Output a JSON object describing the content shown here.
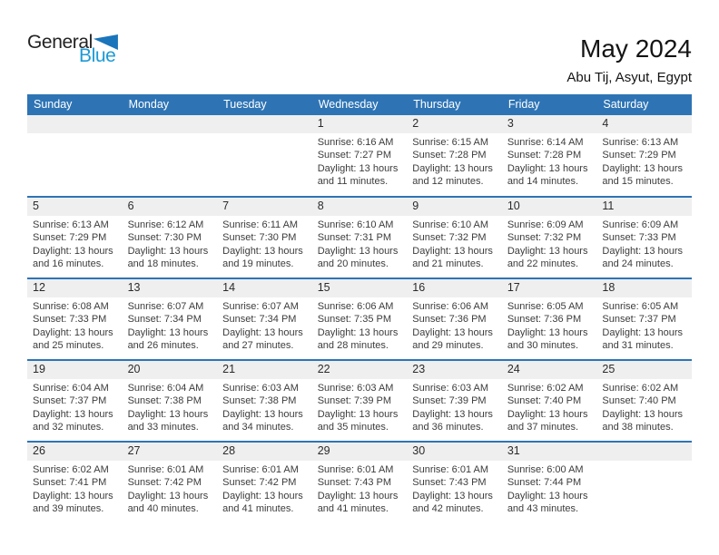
{
  "logo": {
    "general": "General",
    "blue": "Blue"
  },
  "header": {
    "title": "May 2024",
    "location": "Abu Tij, Asyut, Egypt"
  },
  "weekdays": [
    "Sunday",
    "Monday",
    "Tuesday",
    "Wednesday",
    "Thursday",
    "Friday",
    "Saturday"
  ],
  "colors": {
    "header_bg": "#2E74B5",
    "week_separator": "#2E74B5",
    "day_band_bg": "#EFEFEF",
    "logo_general": "#232323",
    "logo_blue": "#1C9AD6",
    "logo_triangle": "#1B75BB"
  },
  "calendar": {
    "weeks": [
      {
        "cells": [
          {
            "day": "",
            "sunrise": "",
            "sunset": "",
            "daylight1": "",
            "daylight2": ""
          },
          {
            "day": "",
            "sunrise": "",
            "sunset": "",
            "daylight1": "",
            "daylight2": ""
          },
          {
            "day": "",
            "sunrise": "",
            "sunset": "",
            "daylight1": "",
            "daylight2": ""
          },
          {
            "day": "1",
            "sunrise": "Sunrise: 6:16 AM",
            "sunset": "Sunset: 7:27 PM",
            "daylight1": "Daylight: 13 hours",
            "daylight2": "and 11 minutes."
          },
          {
            "day": "2",
            "sunrise": "Sunrise: 6:15 AM",
            "sunset": "Sunset: 7:28 PM",
            "daylight1": "Daylight: 13 hours",
            "daylight2": "and 12 minutes."
          },
          {
            "day": "3",
            "sunrise": "Sunrise: 6:14 AM",
            "sunset": "Sunset: 7:28 PM",
            "daylight1": "Daylight: 13 hours",
            "daylight2": "and 14 minutes."
          },
          {
            "day": "4",
            "sunrise": "Sunrise: 6:13 AM",
            "sunset": "Sunset: 7:29 PM",
            "daylight1": "Daylight: 13 hours",
            "daylight2": "and 15 minutes."
          }
        ]
      },
      {
        "cells": [
          {
            "day": "5",
            "sunrise": "Sunrise: 6:13 AM",
            "sunset": "Sunset: 7:29 PM",
            "daylight1": "Daylight: 13 hours",
            "daylight2": "and 16 minutes."
          },
          {
            "day": "6",
            "sunrise": "Sunrise: 6:12 AM",
            "sunset": "Sunset: 7:30 PM",
            "daylight1": "Daylight: 13 hours",
            "daylight2": "and 18 minutes."
          },
          {
            "day": "7",
            "sunrise": "Sunrise: 6:11 AM",
            "sunset": "Sunset: 7:30 PM",
            "daylight1": "Daylight: 13 hours",
            "daylight2": "and 19 minutes."
          },
          {
            "day": "8",
            "sunrise": "Sunrise: 6:10 AM",
            "sunset": "Sunset: 7:31 PM",
            "daylight1": "Daylight: 13 hours",
            "daylight2": "and 20 minutes."
          },
          {
            "day": "9",
            "sunrise": "Sunrise: 6:10 AM",
            "sunset": "Sunset: 7:32 PM",
            "daylight1": "Daylight: 13 hours",
            "daylight2": "and 21 minutes."
          },
          {
            "day": "10",
            "sunrise": "Sunrise: 6:09 AM",
            "sunset": "Sunset: 7:32 PM",
            "daylight1": "Daylight: 13 hours",
            "daylight2": "and 22 minutes."
          },
          {
            "day": "11",
            "sunrise": "Sunrise: 6:09 AM",
            "sunset": "Sunset: 7:33 PM",
            "daylight1": "Daylight: 13 hours",
            "daylight2": "and 24 minutes."
          }
        ]
      },
      {
        "cells": [
          {
            "day": "12",
            "sunrise": "Sunrise: 6:08 AM",
            "sunset": "Sunset: 7:33 PM",
            "daylight1": "Daylight: 13 hours",
            "daylight2": "and 25 minutes."
          },
          {
            "day": "13",
            "sunrise": "Sunrise: 6:07 AM",
            "sunset": "Sunset: 7:34 PM",
            "daylight1": "Daylight: 13 hours",
            "daylight2": "and 26 minutes."
          },
          {
            "day": "14",
            "sunrise": "Sunrise: 6:07 AM",
            "sunset": "Sunset: 7:34 PM",
            "daylight1": "Daylight: 13 hours",
            "daylight2": "and 27 minutes."
          },
          {
            "day": "15",
            "sunrise": "Sunrise: 6:06 AM",
            "sunset": "Sunset: 7:35 PM",
            "daylight1": "Daylight: 13 hours",
            "daylight2": "and 28 minutes."
          },
          {
            "day": "16",
            "sunrise": "Sunrise: 6:06 AM",
            "sunset": "Sunset: 7:36 PM",
            "daylight1": "Daylight: 13 hours",
            "daylight2": "and 29 minutes."
          },
          {
            "day": "17",
            "sunrise": "Sunrise: 6:05 AM",
            "sunset": "Sunset: 7:36 PM",
            "daylight1": "Daylight: 13 hours",
            "daylight2": "and 30 minutes."
          },
          {
            "day": "18",
            "sunrise": "Sunrise: 6:05 AM",
            "sunset": "Sunset: 7:37 PM",
            "daylight1": "Daylight: 13 hours",
            "daylight2": "and 31 minutes."
          }
        ]
      },
      {
        "cells": [
          {
            "day": "19",
            "sunrise": "Sunrise: 6:04 AM",
            "sunset": "Sunset: 7:37 PM",
            "daylight1": "Daylight: 13 hours",
            "daylight2": "and 32 minutes."
          },
          {
            "day": "20",
            "sunrise": "Sunrise: 6:04 AM",
            "sunset": "Sunset: 7:38 PM",
            "daylight1": "Daylight: 13 hours",
            "daylight2": "and 33 minutes."
          },
          {
            "day": "21",
            "sunrise": "Sunrise: 6:03 AM",
            "sunset": "Sunset: 7:38 PM",
            "daylight1": "Daylight: 13 hours",
            "daylight2": "and 34 minutes."
          },
          {
            "day": "22",
            "sunrise": "Sunrise: 6:03 AM",
            "sunset": "Sunset: 7:39 PM",
            "daylight1": "Daylight: 13 hours",
            "daylight2": "and 35 minutes."
          },
          {
            "day": "23",
            "sunrise": "Sunrise: 6:03 AM",
            "sunset": "Sunset: 7:39 PM",
            "daylight1": "Daylight: 13 hours",
            "daylight2": "and 36 minutes."
          },
          {
            "day": "24",
            "sunrise": "Sunrise: 6:02 AM",
            "sunset": "Sunset: 7:40 PM",
            "daylight1": "Daylight: 13 hours",
            "daylight2": "and 37 minutes."
          },
          {
            "day": "25",
            "sunrise": "Sunrise: 6:02 AM",
            "sunset": "Sunset: 7:40 PM",
            "daylight1": "Daylight: 13 hours",
            "daylight2": "and 38 minutes."
          }
        ]
      },
      {
        "cells": [
          {
            "day": "26",
            "sunrise": "Sunrise: 6:02 AM",
            "sunset": "Sunset: 7:41 PM",
            "daylight1": "Daylight: 13 hours",
            "daylight2": "and 39 minutes."
          },
          {
            "day": "27",
            "sunrise": "Sunrise: 6:01 AM",
            "sunset": "Sunset: 7:42 PM",
            "daylight1": "Daylight: 13 hours",
            "daylight2": "and 40 minutes."
          },
          {
            "day": "28",
            "sunrise": "Sunrise: 6:01 AM",
            "sunset": "Sunset: 7:42 PM",
            "daylight1": "Daylight: 13 hours",
            "daylight2": "and 41 minutes."
          },
          {
            "day": "29",
            "sunrise": "Sunrise: 6:01 AM",
            "sunset": "Sunset: 7:43 PM",
            "daylight1": "Daylight: 13 hours",
            "daylight2": "and 41 minutes."
          },
          {
            "day": "30",
            "sunrise": "Sunrise: 6:01 AM",
            "sunset": "Sunset: 7:43 PM",
            "daylight1": "Daylight: 13 hours",
            "daylight2": "and 42 minutes."
          },
          {
            "day": "31",
            "sunrise": "Sunrise: 6:00 AM",
            "sunset": "Sunset: 7:44 PM",
            "daylight1": "Daylight: 13 hours",
            "daylight2": "and 43 minutes."
          },
          {
            "day": "",
            "sunrise": "",
            "sunset": "",
            "daylight1": "",
            "daylight2": ""
          }
        ]
      }
    ]
  }
}
